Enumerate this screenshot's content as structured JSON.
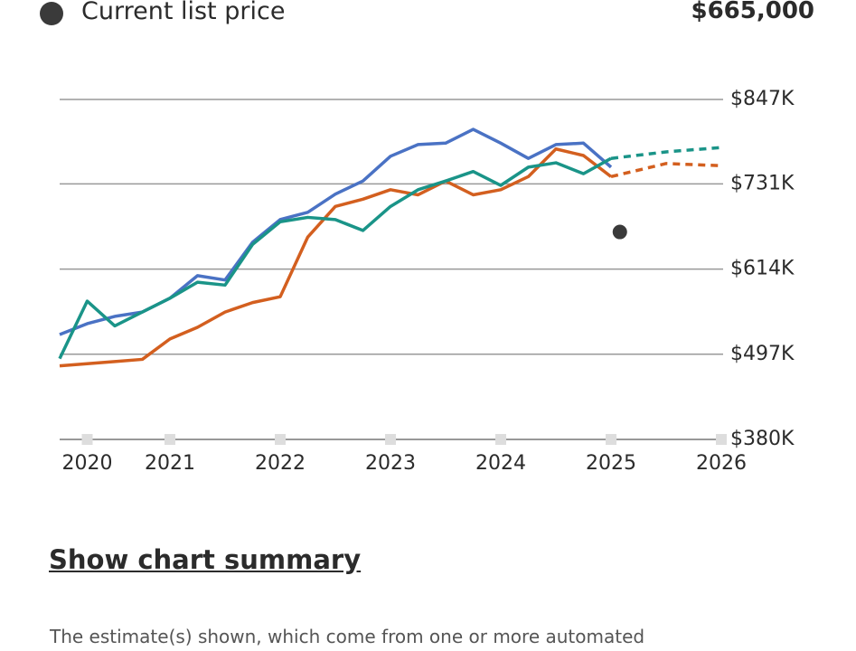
{
  "list_price": {
    "label": "Current list price",
    "value": 665000,
    "value_label": "$665,000",
    "x": 2025.08,
    "color": "#3a3a3a"
  },
  "chart_data": {
    "type": "line",
    "x": [
      2020,
      2020.25,
      2020.5,
      2020.75,
      2021,
      2021.25,
      2021.5,
      2021.75,
      2022,
      2022.25,
      2022.5,
      2022.75,
      2023,
      2023.25,
      2023.5,
      2023.75,
      2024,
      2024.25,
      2024.5,
      2024.75,
      2025
    ],
    "series": [
      {
        "color": "#4a72c4",
        "values": [
          524000,
          539000,
          549000,
          555000,
          574000,
          605000,
          599000,
          651000,
          682000,
          692000,
          717000,
          735000,
          769000,
          785000,
          787000,
          806000,
          787000,
          766000,
          785000,
          787000,
          754000
        ]
      },
      {
        "color": "#d35f1f",
        "values": [
          481000,
          484000,
          487000,
          490000,
          518000,
          534000,
          555000,
          568000,
          576000,
          658000,
          700000,
          710000,
          723000,
          716000,
          735000,
          716000,
          723000,
          741000,
          779000,
          770000,
          741000
        ]
      },
      {
        "color": "#1a9488",
        "values": [
          491000,
          570000,
          536000,
          555000,
          574000,
          596000,
          592000,
          648000,
          679000,
          685000,
          682000,
          667000,
          700000,
          723000,
          735000,
          748000,
          729000,
          754000,
          760000,
          745000,
          766000
        ]
      },
      {
        "color": "#d35f1f",
        "dashed": true,
        "x": [
          2025,
          2025.5,
          2026
        ],
        "values": [
          741000,
          759000,
          756000
        ]
      },
      {
        "color": "#1a9488",
        "dashed": true,
        "x": [
          2025,
          2025.5,
          2026
        ],
        "values": [
          766000,
          775000,
          781000
        ]
      }
    ],
    "xlim": [
      2020,
      2026
    ],
    "xticks": [
      {
        "value": 2020.25,
        "label": "2020"
      },
      2021,
      2022,
      2023,
      2024,
      2025,
      2026
    ],
    "ylim": [
      380000,
      847000
    ],
    "yticks": [
      {
        "value": 380000,
        "label": "$380K"
      },
      {
        "value": 497000,
        "label": "$497K"
      },
      {
        "value": 614000,
        "label": "$614K"
      },
      {
        "value": 731000,
        "label": "$731K"
      },
      {
        "value": 847000,
        "label": "$847K"
      }
    ],
    "grid": true
  },
  "summary_link": "Show chart summary",
  "disclaimer": "The estimate(s) shown, which come from one or more automated"
}
